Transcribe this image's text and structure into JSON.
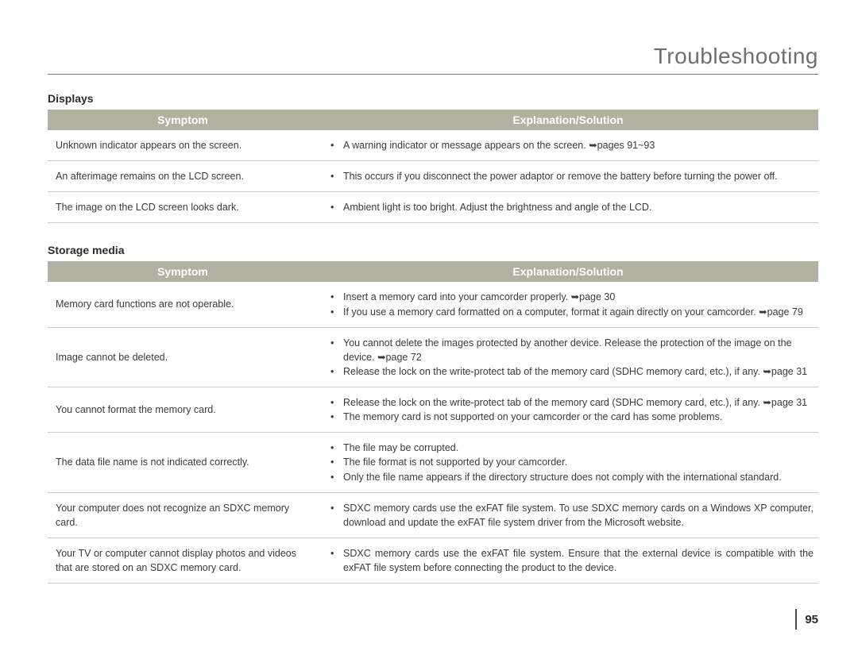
{
  "page": {
    "title": "Troubleshooting",
    "number": "95"
  },
  "colors": {
    "header_bg": "#b2b0a1",
    "header_text": "#ffffff",
    "body_text": "#3a3a3a",
    "title_text": "#6f6f6f",
    "rule": "#c9c9c9",
    "page_bg": "#ffffff"
  },
  "columns": {
    "symptom": "Symptom",
    "solution": "Explanation/Solution"
  },
  "sections": [
    {
      "label": "Displays",
      "rows": [
        {
          "symptom": "Unknown indicator appears on the screen.",
          "bullets": [
            "A warning indicator or message appears on the screen. ➥pages 91~93"
          ]
        },
        {
          "symptom": "An afterimage remains on the LCD screen.",
          "bullets": [
            "This occurs if you disconnect the power adaptor or remove the battery before turning the power off."
          ]
        },
        {
          "symptom": "The image on the LCD screen looks dark.",
          "bullets": [
            "Ambient light is too bright. Adjust the brightness and angle of the LCD."
          ]
        }
      ]
    },
    {
      "label": "Storage media",
      "rows": [
        {
          "symptom": "Memory card functions are not operable.",
          "bullets": [
            "Insert a memory card into your camcorder properly. ➥page 30",
            "If you use a memory card formatted on a computer, format it again directly on your camcorder. ➥page 79"
          ]
        },
        {
          "symptom": "Image cannot be deleted.",
          "bullets": [
            "You cannot delete the images protected by another device. Release the protection of the image on the device. ➥page 72",
            "Release the lock on the write-protect tab of the memory card (SDHC memory card, etc.), if any. ➥page 31"
          ]
        },
        {
          "symptom": "You cannot format the memory card.",
          "bullets": [
            "Release the lock on the write-protect tab of the memory card (SDHC memory card, etc.), if any. ➥page 31",
            "The memory card is not supported on your camcorder or the card has some problems."
          ]
        },
        {
          "symptom": "The data file name is not indicated correctly.",
          "bullets": [
            "The file may be corrupted.",
            "The file format is not supported by your camcorder.",
            "Only the file name appears if the directory structure does not comply with the international standard."
          ]
        },
        {
          "symptom": "Your computer does not recognize an SDXC memory card.",
          "bullets": [
            "SDXC memory cards use the exFAT file system. To use SDXC memory cards on a Windows XP computer, download and update the exFAT file system driver from the Microsoft website."
          ],
          "justify": true
        },
        {
          "symptom": "Your TV or computer cannot display photos and videos that are stored on an SDXC memory card.",
          "bullets": [
            "SDXC memory cards use the exFAT file system. Ensure that the external device is compatible with the exFAT file system before connecting the product to the device."
          ],
          "justify": true
        }
      ]
    }
  ]
}
